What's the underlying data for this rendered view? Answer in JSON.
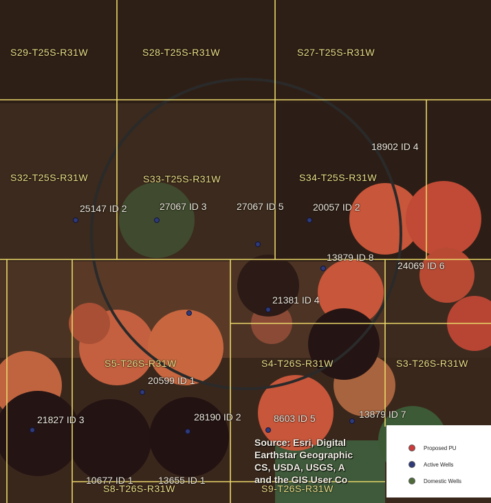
{
  "sections": [
    {
      "label": "S29-T25S-R31W"
    },
    {
      "label": "S28-T25S-R31W"
    },
    {
      "label": "S27-T25S-R31W"
    },
    {
      "label": "S32-T25S-R31W"
    },
    {
      "label": "S33-T25S-R31W"
    },
    {
      "label": "S34-T25S-R31W"
    },
    {
      "label": "S5-T26S-R31W"
    },
    {
      "label": "S4-T26S-R31W"
    },
    {
      "label": "S3-T26S-R31W"
    },
    {
      "label": "S8-T26S-R31W"
    },
    {
      "label": "S9-T26S-R31W"
    }
  ],
  "wells": [
    {
      "label": "18902 ID 4"
    },
    {
      "label": "25147 ID 2"
    },
    {
      "label": "27067 ID 3"
    },
    {
      "label": "27067 ID 5"
    },
    {
      "label": "20057 ID 2"
    },
    {
      "label": "13879 ID 8"
    },
    {
      "label": "24069 ID 6"
    },
    {
      "label": "21381 ID 4"
    },
    {
      "label": "20599 ID 1"
    },
    {
      "label": "21827 ID 3"
    },
    {
      "label": "28190 ID 2"
    },
    {
      "label": "8603 ID 5"
    },
    {
      "label": "13879 ID 7"
    },
    {
      "label": "10677 ID 1"
    },
    {
      "label": "13655 ID 1"
    }
  ],
  "credit": {
    "line1": "Source: Esri, Digital",
    "line2": "Earthstar Geographic",
    "line3": "CS, USDA, USGS, A",
    "line4": "and the GIS User Co"
  },
  "legend": {
    "items": [
      {
        "label": "Proposed PU",
        "color": "#cc3a3a"
      },
      {
        "label": "Active Wells",
        "color": "#2f3a7a"
      },
      {
        "label": "Domestic Wells",
        "color": "#4f6b3a"
      }
    ]
  },
  "colors": {
    "section_lines": "#e9d86a",
    "buffer_circle": "#2a2a2a",
    "field_red": "#c8563a",
    "field_dark": "#241414",
    "well_point": "#2f3a7a"
  }
}
